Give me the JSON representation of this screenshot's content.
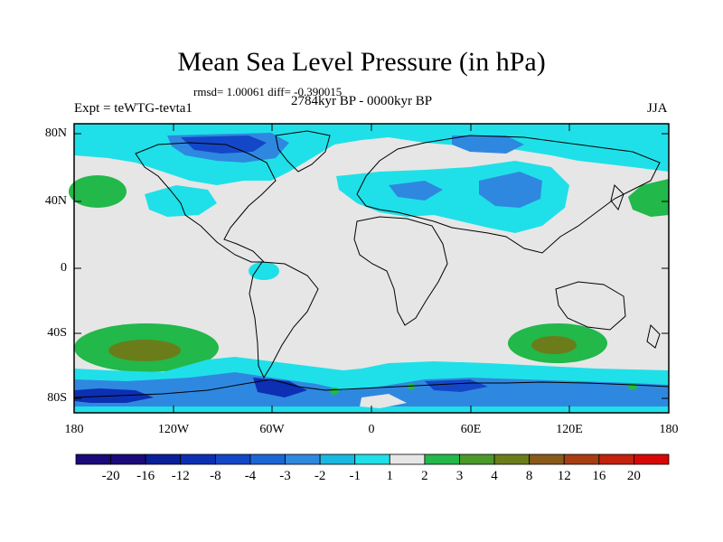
{
  "header": {
    "title": "Mean Sea Level Pressure (in hPa)",
    "stats": "rmsd= 1.00061 diff= -0.390015",
    "expt": "Expt = teWTG-tevta1",
    "period": "2784kyr BP - 0000kyr BP",
    "season": "JJA"
  },
  "map": {
    "lat_labels": [
      "80N",
      "40N",
      "0",
      "40S",
      "80S"
    ],
    "lon_labels": [
      "180",
      "120W",
      "60W",
      "0",
      "60E",
      "120E",
      "180"
    ]
  },
  "colorbar": {
    "labels": [
      "-20",
      "-16",
      "-12",
      "-8",
      "-4",
      "-3",
      "-2",
      "-1",
      "1",
      "2",
      "3",
      "4",
      "8",
      "12",
      "16",
      "20"
    ],
    "colors": [
      "#1a0a7a",
      "#0a1f9a",
      "#0d2fb3",
      "#1447c8",
      "#1a66d6",
      "#2f88e0",
      "#19b8e0",
      "#1fe0e8",
      "#e6e6e6",
      "#22b84a",
      "#4a9a2a",
      "#6b7d1a",
      "#8a5a1a",
      "#a83d12",
      "#c2220e",
      "#d80808"
    ]
  },
  "legend_colors": {
    "neutral": "#e6e6e6",
    "cyan": "#1fe0e8",
    "lightblue": "#2f88e0",
    "blue": "#1447c8",
    "darkblue": "#0d2fb3",
    "green": "#22b84a",
    "olive": "#6b7d1a"
  }
}
